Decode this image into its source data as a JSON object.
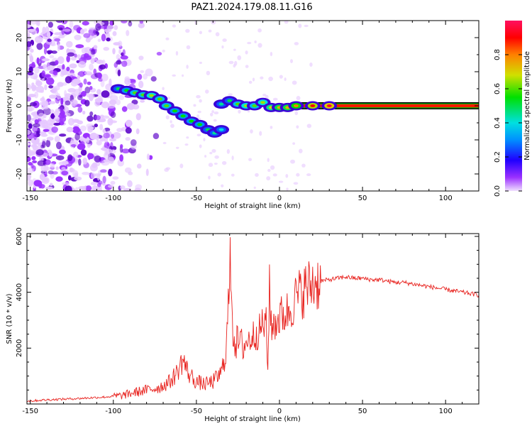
{
  "title": "PAZ1.2024.179.08.11.G16",
  "colors": {
    "snr_line": "#e8231f",
    "scatter_low": "#e6c8ff",
    "scatter_mid": "#9b30ff",
    "scatter_high": "#5a00c8",
    "band_edge": "#000000"
  },
  "chart_data": [
    {
      "id": "spectrogram",
      "type": "heatmap",
      "xlabel": "Height of straight line (km)",
      "ylabel": "Frequency (Hz)",
      "xlim": [
        -152,
        120
      ],
      "ylim": [
        -25,
        25
      ],
      "xticks": [
        -150,
        -100,
        -50,
        0,
        50,
        100
      ],
      "yticks": [
        -20,
        -10,
        0,
        10,
        20
      ],
      "grid": false,
      "noise_region": {
        "x": [
          -152,
          -70
        ],
        "y": [
          -25,
          25
        ]
      },
      "ridge": [
        {
          "x": -97,
          "y": 5.0,
          "amp": 0.35
        },
        {
          "x": -92,
          "y": 4.5,
          "amp": 0.4
        },
        {
          "x": -87,
          "y": 3.8,
          "amp": 0.45
        },
        {
          "x": -82,
          "y": 3.2,
          "amp": 0.45
        },
        {
          "x": -77,
          "y": 3.0,
          "amp": 0.5
        },
        {
          "x": -72,
          "y": 2.0,
          "amp": 0.45
        },
        {
          "x": -68,
          "y": 0.0,
          "amp": 0.45
        },
        {
          "x": -63,
          "y": -1.5,
          "amp": 0.4
        },
        {
          "x": -58,
          "y": -3.0,
          "amp": 0.4
        },
        {
          "x": -53,
          "y": -4.5,
          "amp": 0.4
        },
        {
          "x": -48,
          "y": -5.5,
          "amp": 0.4
        },
        {
          "x": -43,
          "y": -7.0,
          "amp": 0.35
        },
        {
          "x": -39,
          "y": -8.0,
          "amp": 0.3
        },
        {
          "x": -35,
          "y": -7.0,
          "amp": 0.25
        },
        {
          "x": -35,
          "y": 0.5,
          "amp": 0.3
        },
        {
          "x": -30,
          "y": 1.5,
          "amp": 0.35
        },
        {
          "x": -25,
          "y": 0.5,
          "amp": 0.45
        },
        {
          "x": -20,
          "y": 0.0,
          "amp": 0.5
        },
        {
          "x": -15,
          "y": 0.0,
          "amp": 0.45
        },
        {
          "x": -10,
          "y": 1.0,
          "amp": 0.5
        },
        {
          "x": -5,
          "y": -0.5,
          "amp": 0.55
        },
        {
          "x": 0,
          "y": -0.5,
          "amp": 0.6
        },
        {
          "x": 5,
          "y": -0.5,
          "amp": 0.6
        },
        {
          "x": 10,
          "y": 0.0,
          "amp": 0.65
        },
        {
          "x": 20,
          "y": 0.0,
          "amp": 0.75
        },
        {
          "x": 30,
          "y": 0.0,
          "amp": 0.8
        }
      ],
      "steady_band": {
        "x": [
          10,
          120
        ],
        "y": 0.0,
        "amp": 0.9
      },
      "colorbar": {
        "label": "Normalized spectral amplitude",
        "range": [
          0,
          1
        ],
        "ticks": [
          0.0,
          0.2,
          0.4,
          0.6,
          0.8
        ]
      }
    },
    {
      "id": "snr",
      "type": "line",
      "xlabel": "Height of straight line (km)",
      "ylabel": "SNR (10 * v/v)",
      "xlim": [
        -152,
        120
      ],
      "ylim": [
        0,
        6100
      ],
      "xticks": [
        -150,
        -100,
        -50,
        0,
        50,
        100
      ],
      "yticks": [
        2000,
        4000,
        6000
      ],
      "grid": false,
      "series": [
        {
          "x": [
            -152,
            -140,
            -120,
            -105,
            -95,
            -88,
            -80,
            -72,
            -66,
            -62,
            -58,
            -55,
            -50,
            -45,
            -40,
            -35,
            -32,
            -30,
            -29,
            -28,
            -26,
            -22,
            -18,
            -15,
            -12,
            -10,
            -8,
            -7,
            -6,
            -5,
            -3,
            0,
            5,
            8,
            10,
            15,
            20,
            25,
            30,
            35,
            40,
            45,
            50,
            55,
            60,
            65,
            70,
            75,
            80,
            85,
            90,
            95,
            100,
            105,
            110,
            115,
            120
          ],
          "y": [
            100,
            150,
            200,
            250,
            300,
            400,
            500,
            600,
            800,
            1100,
            1600,
            1100,
            800,
            700,
            800,
            1100,
            2000,
            4400,
            5200,
            2500,
            2200,
            2100,
            2300,
            2500,
            2600,
            2900,
            2800,
            1100,
            4500,
            2700,
            2900,
            3100,
            3300,
            3600,
            3800,
            4100,
            4300,
            4400,
            4450,
            4500,
            4550,
            4500,
            4500,
            4450,
            4450,
            4400,
            4350,
            4350,
            4300,
            4250,
            4200,
            4150,
            4100,
            4050,
            4000,
            3950,
            3900
          ]
        }
      ]
    }
  ]
}
